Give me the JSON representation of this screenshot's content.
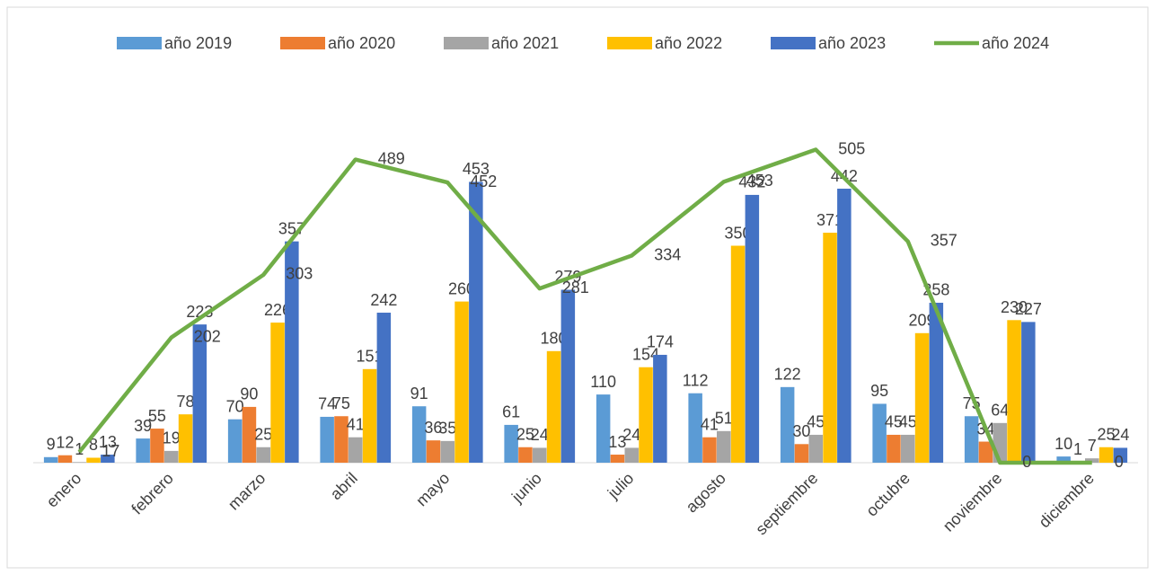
{
  "chart_data": {
    "type": "bar",
    "categories": [
      "enero",
      "febrero",
      "marzo",
      "abril",
      "mayo",
      "junio",
      "julio",
      "agosto",
      "septiembre",
      "octubre",
      "noviembre",
      "diciembre"
    ],
    "series": [
      {
        "name": "año 2019",
        "color": "#5b9bd5",
        "values": [
          9,
          39,
          70,
          74,
          91,
          61,
          110,
          112,
          122,
          95,
          75,
          10
        ]
      },
      {
        "name": "año 2020",
        "color": "#ed7d31",
        "values": [
          12,
          55,
          90,
          75,
          36,
          25,
          13,
          41,
          30,
          45,
          34,
          1
        ]
      },
      {
        "name": "año 2021",
        "color": "#a5a5a5",
        "values": [
          1,
          19,
          25,
          41,
          35,
          24,
          24,
          51,
          45,
          45,
          64,
          7
        ]
      },
      {
        "name": "año 2022",
        "color": "#ffc000",
        "values": [
          8,
          78,
          226,
          151,
          260,
          180,
          154,
          350,
          371,
          209,
          230,
          25
        ]
      },
      {
        "name": "año 2023",
        "color": "#4472c4",
        "values": [
          13,
          223,
          357,
          242,
          453,
          279,
          174,
          432,
          442,
          258,
          227,
          24
        ]
      },
      {
        "name": "año 2024",
        "color": "#70ad47",
        "type": "line",
        "values": [
          17,
          202,
          303,
          489,
          452,
          281,
          334,
          453,
          505,
          357,
          0,
          0
        ]
      }
    ],
    "ylim": [
      0,
      600
    ],
    "legend": "top"
  }
}
